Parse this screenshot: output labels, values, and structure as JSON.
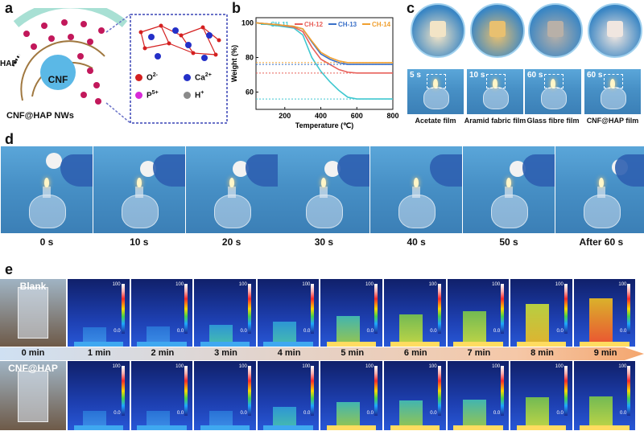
{
  "panels": {
    "a": "a",
    "b": "b",
    "c": "c",
    "d": "d",
    "e": "e"
  },
  "panel_a": {
    "hap_label": "HAP",
    "cnf_label": "CNF",
    "nw_label": "CNF@HAP NWs",
    "legend": [
      {
        "symbol": "O",
        "charge": "2-",
        "color": "#d42020"
      },
      {
        "symbol": "Ca",
        "charge": "2+",
        "color": "#2430c8"
      },
      {
        "symbol": "P",
        "charge": "5+",
        "color": "#d82ad8"
      },
      {
        "symbol": "H",
        "charge": "+",
        "color": "#8a8a8a"
      }
    ]
  },
  "chart_data": {
    "type": "line",
    "xlabel": "Temperature (℃)",
    "ylabel": "Weight (%)",
    "xlim": [
      40,
      800
    ],
    "ylim": [
      50,
      103
    ],
    "xticks": [
      200,
      400,
      600,
      800
    ],
    "yticks": [
      60,
      80,
      100
    ],
    "legend_position": "top",
    "series": [
      {
        "name": "CH-11",
        "color": "#40c8d0",
        "x": [
          40,
          150,
          250,
          300,
          350,
          400,
          450,
          500,
          550,
          600,
          800
        ],
        "y": [
          100,
          98.5,
          97,
          93,
          80,
          72,
          66,
          61,
          57,
          56,
          56
        ]
      },
      {
        "name": "CH-12",
        "color": "#e8605a",
        "x": [
          40,
          150,
          250,
          300,
          350,
          400,
          450,
          500,
          550,
          600,
          800
        ],
        "y": [
          100,
          99,
          97.5,
          95,
          86,
          79,
          76,
          73,
          71.5,
          71,
          71
        ]
      },
      {
        "name": "CH-13",
        "color": "#3a70c8",
        "x": [
          40,
          150,
          250,
          300,
          350,
          400,
          450,
          500,
          550,
          600,
          800
        ],
        "y": [
          100,
          99,
          98,
          96.5,
          89,
          82,
          79,
          77,
          76,
          76,
          76
        ]
      },
      {
        "name": "CH-14",
        "color": "#f0a030",
        "x": [
          40,
          150,
          250,
          300,
          350,
          400,
          450,
          500,
          550,
          600,
          800
        ],
        "y": [
          100,
          99,
          98,
          96.5,
          89.5,
          83,
          80,
          78,
          77,
          77,
          77
        ]
      }
    ]
  },
  "panel_c": {
    "items": [
      {
        "time": "5 s",
        "caption": "Acetate film"
      },
      {
        "time": "10 s",
        "caption": "Aramid fabric film"
      },
      {
        "time": "60 s",
        "caption": "Glass fibre film"
      },
      {
        "time": "60 s",
        "caption": "CNF@HAP film"
      }
    ]
  },
  "panel_d": {
    "times": [
      "0 s",
      "10 s",
      "20 s",
      "30 s",
      "40 s",
      "50 s",
      "After 60 s"
    ]
  },
  "panel_e": {
    "blank_label": "Blank",
    "cnf_label": "CNF@HAP",
    "times": [
      "0 min",
      "1 min",
      "2 min",
      "3 min",
      "4 min",
      "5 min",
      "6 min",
      "7 min",
      "8 min",
      "9 min"
    ],
    "scale_max": "100",
    "scale_min": "0.0",
    "blank_levels": [
      0.1,
      0.12,
      0.15,
      0.25,
      0.4,
      0.45,
      0.55,
      0.75,
      0.9
    ],
    "cnf_levels": [
      0.08,
      0.08,
      0.1,
      0.2,
      0.35,
      0.38,
      0.42,
      0.48,
      0.5
    ]
  }
}
